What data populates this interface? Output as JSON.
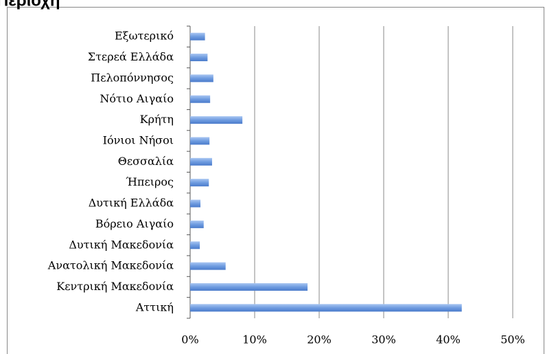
{
  "chart_data": {
    "type": "hbar",
    "title": "Περιοχή",
    "categories": [
      "Εξωτερικό",
      "Στερεά Ελλάδα",
      "Πελοπόννησος",
      "Νότιο Αιγαίο",
      "Κρήτη",
      "Ιόνιοι Νήσοι",
      "Θεσσαλία",
      "Ήπειρος",
      "Δυτική Ελλάδα",
      "Βόρειο Αιγαίο",
      "Δυτική Μακεδονία",
      "Ανατολική Μακεδονία",
      "Κεντρική Μακεδονία",
      "Αττική"
    ],
    "values": [
      2.3,
      2.7,
      3.6,
      3.1,
      8.1,
      3.0,
      3.4,
      2.9,
      1.6,
      2.1,
      1.5,
      5.5,
      18.2,
      42.1
    ],
    "color": "#6f9ce0",
    "xlim": [
      0,
      50
    ],
    "xticks": [
      {
        "value": 0,
        "label": "0%"
      },
      {
        "value": 10,
        "label": "10%"
      },
      {
        "value": 20,
        "label": "20%"
      },
      {
        "value": 30,
        "label": "30%"
      },
      {
        "value": 40,
        "label": "40%"
      },
      {
        "value": 50,
        "label": "50%"
      }
    ],
    "grid": true
  }
}
